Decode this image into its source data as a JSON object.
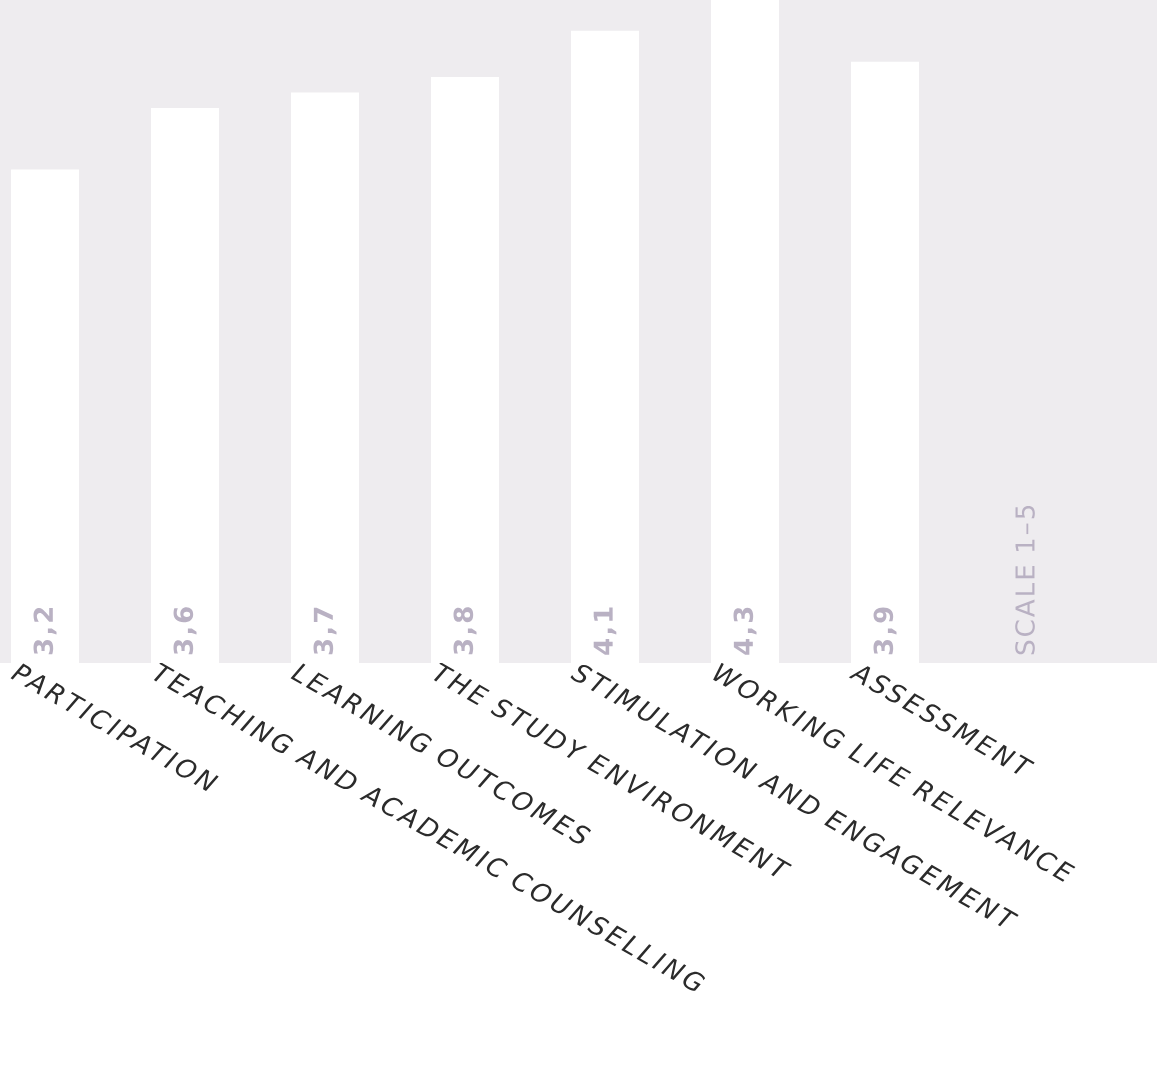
{
  "chart_data": {
    "type": "bar",
    "categories": [
      "PARTICIPATION",
      "TEACHING AND ACADEMIC COUNSELLING",
      "LEARNING OUTCOMES",
      "THE STUDY ENVIRONMENT",
      "STIMULATION AND ENGAGEMENT",
      "WORKING LIFE RELEVANCE",
      "ASSESSMENT"
    ],
    "values": [
      3.2,
      3.6,
      3.7,
      3.8,
      4.1,
      4.3,
      3.9
    ],
    "color": "#ffffff",
    "value_labels": [
      "3,2",
      "3,6",
      "3,7",
      "3,8",
      "4,1",
      "4,3",
      "3,9"
    ],
    "ylim": [
      0,
      4.3
    ],
    "tick_labels": "x",
    "annotations": [
      "SCALE 1–5"
    ]
  }
}
